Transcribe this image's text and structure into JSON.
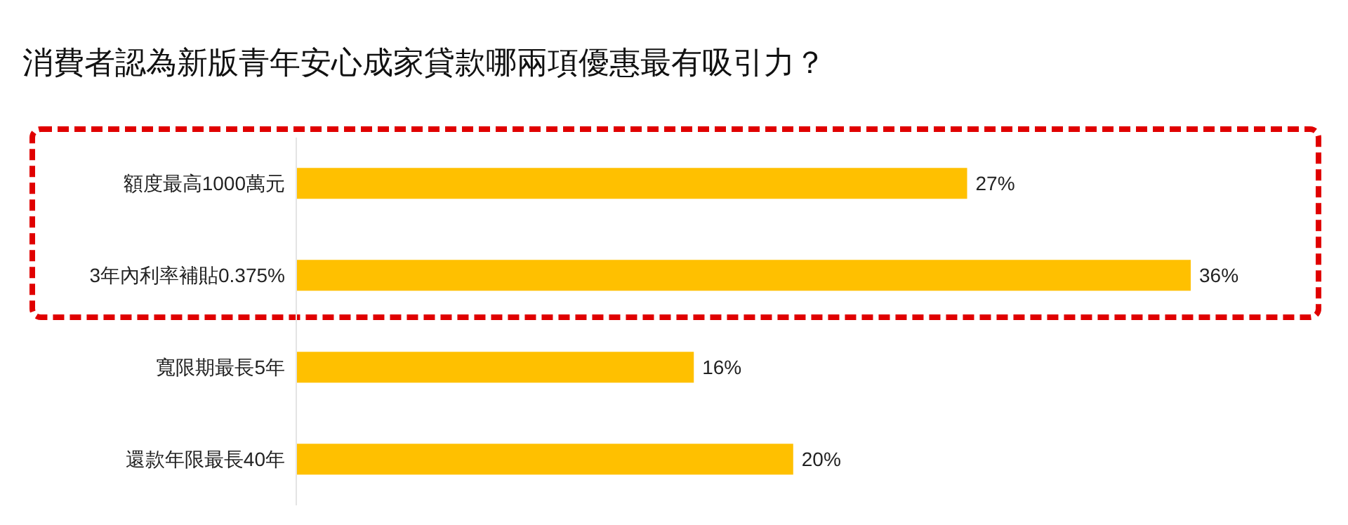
{
  "chart_data": {
    "type": "bar",
    "orientation": "horizontal",
    "title": "消費者認為新版青年安心成家貸款哪兩項優惠最有吸引力？",
    "categories": [
      "額度最高1000萬元",
      "3年內利率補貼0.375%",
      "寬限期最長5年",
      "還款年限最長40年"
    ],
    "values": [
      27,
      36,
      16,
      20
    ],
    "value_labels": [
      "27%",
      "36%",
      "16%",
      "20%"
    ],
    "color": "#ffc000"
  }
}
